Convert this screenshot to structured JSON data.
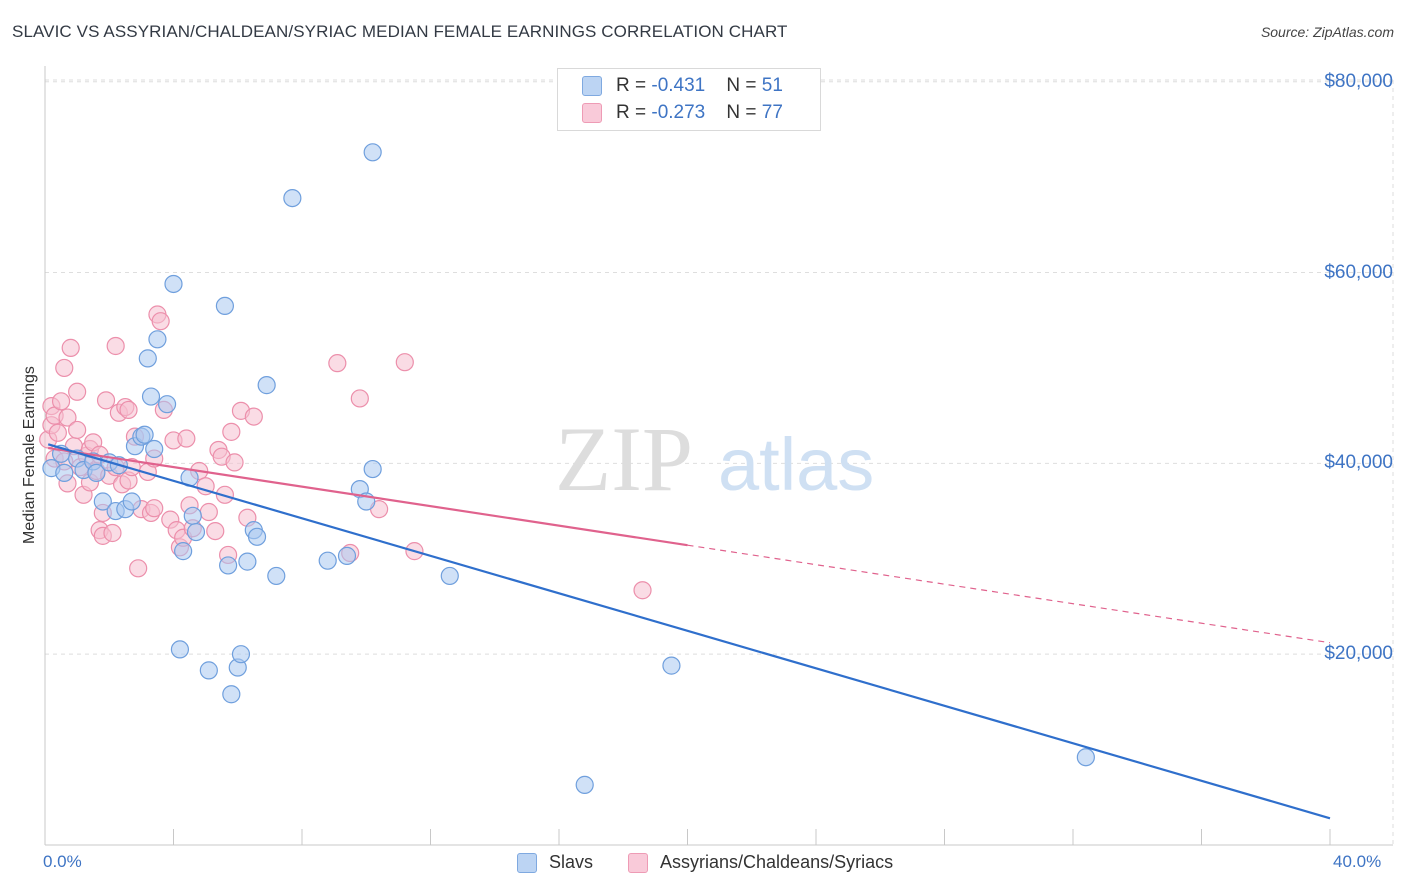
{
  "title": "SLAVIC VS ASSYRIAN/CHALDEAN/SYRIAC MEDIAN FEMALE EARNINGS CORRELATION CHART",
  "source": "Source: ZipAtlas.com",
  "watermark": {
    "zip": "ZIP",
    "atlas": "atlas"
  },
  "legend_top": {
    "rows": [
      {
        "r_label": "R = ",
        "r_value": "-0.431",
        "n_label": "N = ",
        "n_value": "51"
      },
      {
        "r_label": "R = ",
        "r_value": "-0.273",
        "n_label": "N = ",
        "n_value": "77"
      }
    ]
  },
  "legend_bottom": {
    "items": [
      "Slavs",
      "Assyrians/Chaldeans/Syriacs"
    ]
  },
  "colors": {
    "slavs_fill": "#aac8f0",
    "slavs_stroke": "#6f9fdd",
    "slavs_line": "#2f6fcc",
    "assyr_fill": "#f6bfd0",
    "assyr_stroke": "#ec8fab",
    "assyr_line": "#e0628d",
    "tick_text": "#3e74c4",
    "grid": "#dedede"
  },
  "chart_data": {
    "type": "scatter",
    "title": "SLAVIC VS ASSYRIAN/CHALDEAN/SYRIAC MEDIAN FEMALE EARNINGS CORRELATION CHART",
    "xlabel": "",
    "ylabel": "Median Female Earnings",
    "xlim": [
      0,
      40
    ],
    "ylim": [
      0,
      85000
    ],
    "x_tick_labels": [
      "0.0%",
      "40.0%"
    ],
    "y_ticks": [
      {
        "value": 20000,
        "label": "$20,000"
      },
      {
        "value": 40000,
        "label": "$40,000"
      },
      {
        "value": 60000,
        "label": "$60,000"
      },
      {
        "value": 80000,
        "label": "$80,000"
      }
    ],
    "grid": true,
    "legend_position": "top-center",
    "series": [
      {
        "name": "Slavs",
        "r": -0.431,
        "n": 51,
        "trend": {
          "x": [
            0.1,
            40.0
          ],
          "y": [
            42000,
            2800
          ],
          "dashed_from_x": null
        },
        "points": [
          [
            0.2,
            39500
          ],
          [
            0.5,
            41000
          ],
          [
            0.6,
            39000
          ],
          [
            1.0,
            40500
          ],
          [
            1.2,
            39300
          ],
          [
            1.5,
            40200
          ],
          [
            1.6,
            39000
          ],
          [
            1.8,
            36000
          ],
          [
            2.0,
            40100
          ],
          [
            2.2,
            35000
          ],
          [
            2.3,
            39800
          ],
          [
            2.5,
            35200
          ],
          [
            2.7,
            36000
          ],
          [
            2.8,
            41800
          ],
          [
            3.0,
            42800
          ],
          [
            3.1,
            43000
          ],
          [
            3.2,
            51000
          ],
          [
            3.3,
            47000
          ],
          [
            3.4,
            41500
          ],
          [
            3.5,
            53000
          ],
          [
            3.8,
            46200
          ],
          [
            4.0,
            58800
          ],
          [
            4.2,
            20500
          ],
          [
            4.3,
            30800
          ],
          [
            4.5,
            38500
          ],
          [
            4.6,
            34500
          ],
          [
            4.7,
            32800
          ],
          [
            5.1,
            18300
          ],
          [
            5.6,
            56500
          ],
          [
            5.7,
            29300
          ],
          [
            5.8,
            15800
          ],
          [
            6.0,
            18600
          ],
          [
            6.1,
            20000
          ],
          [
            6.3,
            29700
          ],
          [
            6.5,
            33000
          ],
          [
            6.6,
            32300
          ],
          [
            6.9,
            48200
          ],
          [
            7.2,
            28200
          ],
          [
            7.7,
            67800
          ],
          [
            8.8,
            29800
          ],
          [
            9.4,
            30300
          ],
          [
            9.8,
            37300
          ],
          [
            10.0,
            36000
          ],
          [
            10.2,
            39400
          ],
          [
            10.2,
            72600
          ],
          [
            12.6,
            28200
          ],
          [
            16.8,
            6300
          ],
          [
            19.5,
            18800
          ],
          [
            32.4,
            9200
          ]
        ]
      },
      {
        "name": "Assyrians/Chaldeans/Syriacs",
        "r": -0.273,
        "n": 77,
        "trend": {
          "x": [
            0.1,
            40.0
          ],
          "y": [
            41600,
            21200
          ],
          "dashed_from_x": 20.0
        },
        "points": [
          [
            0.1,
            42500
          ],
          [
            0.2,
            44000
          ],
          [
            0.2,
            46000
          ],
          [
            0.3,
            45000
          ],
          [
            0.3,
            40500
          ],
          [
            0.4,
            43200
          ],
          [
            0.5,
            46500
          ],
          [
            0.6,
            40200
          ],
          [
            0.6,
            50000
          ],
          [
            0.7,
            37900
          ],
          [
            0.7,
            44800
          ],
          [
            0.8,
            52100
          ],
          [
            0.9,
            41800
          ],
          [
            1.0,
            43500
          ],
          [
            1.0,
            47500
          ],
          [
            1.1,
            39600
          ],
          [
            1.2,
            36700
          ],
          [
            1.3,
            40800
          ],
          [
            1.4,
            41500
          ],
          [
            1.4,
            38000
          ],
          [
            1.5,
            42200
          ],
          [
            1.6,
            39200
          ],
          [
            1.7,
            33000
          ],
          [
            1.7,
            40900
          ],
          [
            1.8,
            32400
          ],
          [
            1.8,
            34800
          ],
          [
            1.9,
            46600
          ],
          [
            2.0,
            38700
          ],
          [
            2.1,
            32700
          ],
          [
            2.2,
            39600
          ],
          [
            2.2,
            52300
          ],
          [
            2.3,
            45300
          ],
          [
            2.4,
            37800
          ],
          [
            2.5,
            45900
          ],
          [
            2.6,
            45600
          ],
          [
            2.6,
            38200
          ],
          [
            2.7,
            39600
          ],
          [
            2.8,
            42800
          ],
          [
            2.9,
            29000
          ],
          [
            3.0,
            35200
          ],
          [
            3.2,
            39100
          ],
          [
            3.3,
            34800
          ],
          [
            3.4,
            40500
          ],
          [
            3.4,
            35300
          ],
          [
            3.5,
            55600
          ],
          [
            3.6,
            54900
          ],
          [
            3.7,
            45600
          ],
          [
            3.9,
            34100
          ],
          [
            4.0,
            42400
          ],
          [
            4.1,
            33000
          ],
          [
            4.2,
            31200
          ],
          [
            4.3,
            32200
          ],
          [
            4.4,
            42600
          ],
          [
            4.5,
            35600
          ],
          [
            4.6,
            33200
          ],
          [
            4.8,
            39200
          ],
          [
            5.0,
            37600
          ],
          [
            5.1,
            34900
          ],
          [
            5.3,
            32900
          ],
          [
            5.4,
            41400
          ],
          [
            5.5,
            40700
          ],
          [
            5.6,
            36700
          ],
          [
            5.7,
            30400
          ],
          [
            5.8,
            43300
          ],
          [
            5.9,
            40100
          ],
          [
            6.1,
            45500
          ],
          [
            6.3,
            34300
          ],
          [
            6.5,
            44900
          ],
          [
            9.1,
            50500
          ],
          [
            9.5,
            30600
          ],
          [
            9.8,
            46800
          ],
          [
            10.4,
            35200
          ],
          [
            11.2,
            50600
          ],
          [
            11.5,
            30800
          ],
          [
            18.6,
            26700
          ]
        ]
      }
    ]
  }
}
